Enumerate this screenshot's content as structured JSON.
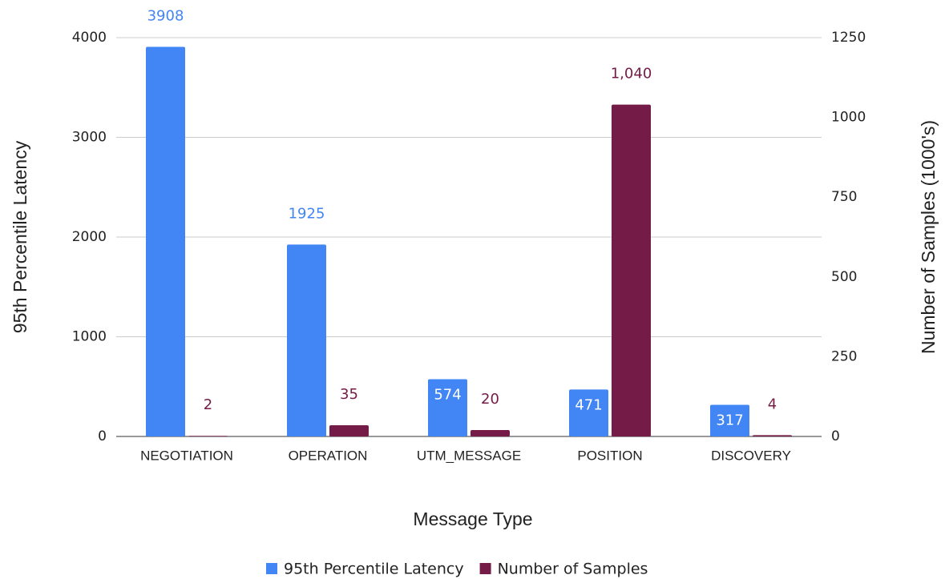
{
  "chart_data": {
    "type": "bar",
    "x_label": "Message Type",
    "y_label": "95th Percentile Latency",
    "y2_label": "Number of Samples (1000's)",
    "categories": [
      "NEGOTIATION",
      "OPERATION",
      "UTM_MESSAGE",
      "POSITION",
      "DISCOVERY"
    ],
    "series": [
      {
        "name": "95th Percentile Latency",
        "color": "#4285f4",
        "values": [
          3908,
          1925,
          574,
          471,
          317
        ]
      },
      {
        "name": "Number of Samples",
        "color": "#741b47",
        "axis": "y2",
        "values": [
          2,
          35,
          20,
          1040,
          4
        ],
        "value_labels": [
          "2",
          "35",
          "20",
          "1,040",
          "4"
        ]
      }
    ],
    "ylim": [
      0,
      4000
    ],
    "yticks": [
      0,
      1000,
      2000,
      3000,
      4000
    ],
    "y2lim": [
      0,
      1250
    ],
    "y2ticks": [
      0,
      250,
      500,
      750,
      1000,
      1250
    ],
    "grid": true,
    "legend": "bottom"
  }
}
